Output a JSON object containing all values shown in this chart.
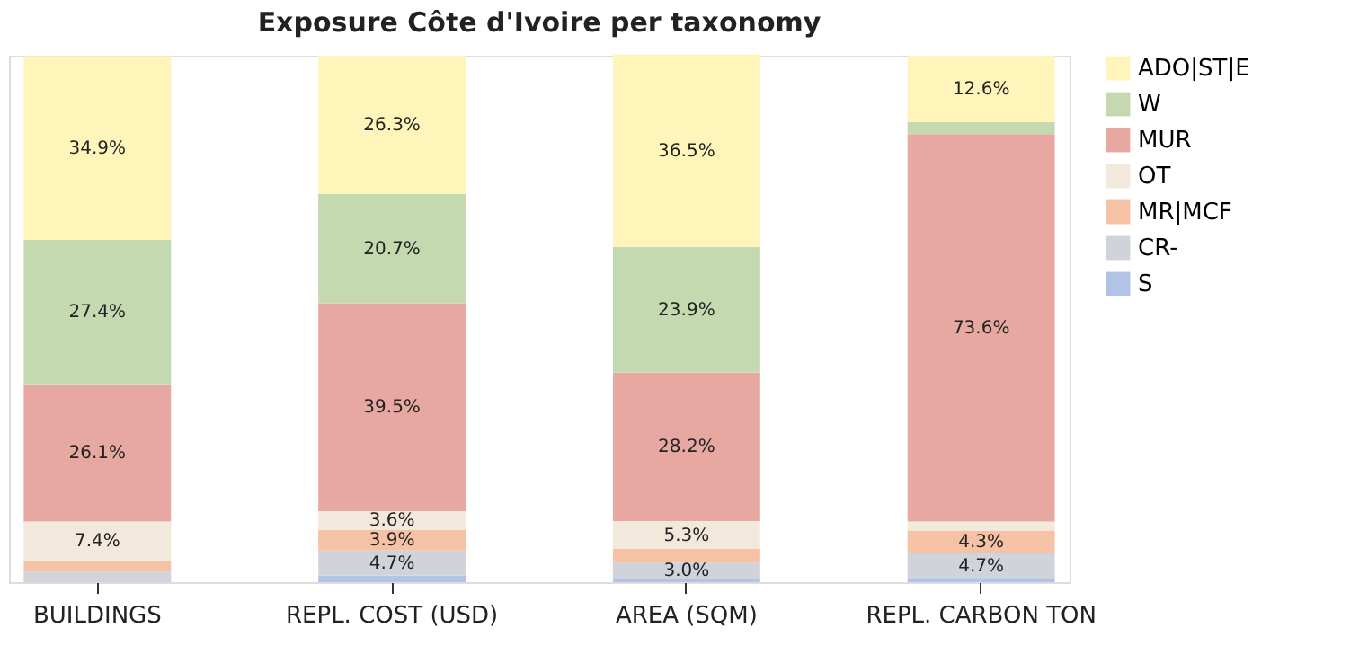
{
  "chart_data": {
    "type": "bar",
    "title": "Exposure Côte d'Ivoire per taxonomy",
    "stacked": true,
    "categories": [
      "BUILDINGS",
      "REPL. COST (USD)",
      "AREA (SQM)",
      "REPL. CARBON TON"
    ],
    "ylim": [
      0,
      100
    ],
    "tick_labels": "x",
    "legend": "top right",
    "series": [
      {
        "name": "S",
        "color": "#b1c4e6",
        "values": [
          null,
          1.3,
          0.7,
          0.8
        ],
        "value_labels": [
          null,
          null,
          null,
          null
        ]
      },
      {
        "name": "CR-",
        "color": "#d0d3da",
        "values": [
          2.0,
          4.7,
          3.0,
          4.7
        ],
        "value_labels": [
          null,
          "4.7%",
          "3.0%",
          "4.7%"
        ]
      },
      {
        "name": "MR|MCF",
        "color": "#f5c2a5",
        "values": [
          2.1,
          3.9,
          2.6,
          4.3
        ],
        "value_labels": [
          null,
          "3.9%",
          null,
          "4.3%"
        ]
      },
      {
        "name": "OT",
        "color": "#f3e8dc",
        "values": [
          7.4,
          3.6,
          5.3,
          1.7
        ],
        "value_labels": [
          "7.4%",
          "3.6%",
          "5.3%",
          null
        ]
      },
      {
        "name": "MUR",
        "color": "#e8a8a2",
        "values": [
          26.1,
          39.5,
          28.2,
          73.6
        ],
        "value_labels": [
          "26.1%",
          "39.5%",
          "28.2%",
          "73.6%"
        ]
      },
      {
        "name": "W",
        "color": "#c5d9b0",
        "values": [
          27.4,
          20.7,
          23.9,
          2.3
        ],
        "value_labels": [
          "27.4%",
          "20.7%",
          "23.9%",
          null
        ]
      },
      {
        "name": "ADO|ST|E",
        "color": "#fff5ba",
        "values": [
          34.9,
          26.3,
          36.5,
          12.6
        ],
        "value_labels": [
          "34.9%",
          "26.3%",
          "36.5%",
          "12.6%"
        ]
      }
    ]
  }
}
